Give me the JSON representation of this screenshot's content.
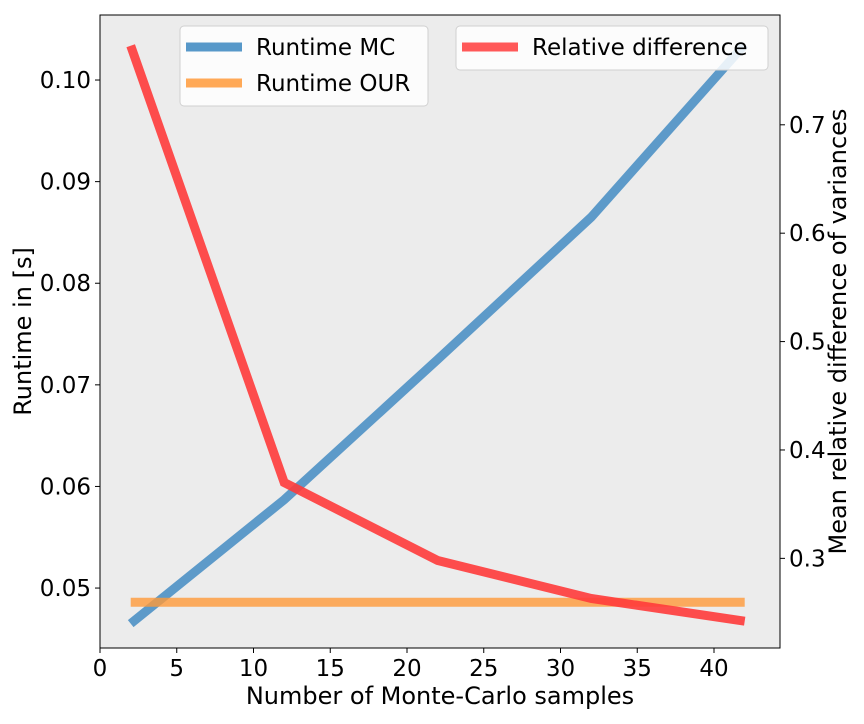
{
  "chart_data": {
    "type": "line",
    "xlabel": "Number of Monte-Carlo samples",
    "ylabel": "Runtime in [s]",
    "y2label": "Mean relative difference of variances",
    "xlim": [
      0,
      44.3
    ],
    "ylim": [
      0.0441,
      0.1064
    ],
    "y2lim": [
      0.2173,
      0.8013
    ],
    "xticks": [
      0,
      5,
      10,
      15,
      20,
      25,
      30,
      35,
      40
    ],
    "yticks": [
      0.05,
      0.06,
      0.07,
      0.08,
      0.09,
      0.1
    ],
    "y2ticks": [
      0.3,
      0.4,
      0.5,
      0.6,
      0.7
    ],
    "background": "#ececec",
    "grid": false,
    "series": [
      {
        "name": "Runtime MC",
        "axis": "left",
        "color": "#3a86c0",
        "x": [
          2,
          12,
          22,
          32,
          42
        ],
        "y": [
          0.0465,
          0.0587,
          0.0725,
          0.0865,
          0.1035
        ]
      },
      {
        "name": "Runtime OUR",
        "axis": "left",
        "color": "#ff9a3a",
        "x": [
          2,
          12,
          22,
          32,
          42
        ],
        "y": [
          0.0486,
          0.0486,
          0.0486,
          0.0486,
          0.0486
        ]
      },
      {
        "name": "Relative difference",
        "axis": "right",
        "color": "#ff3b3b",
        "x": [
          2,
          12,
          22,
          32,
          42
        ],
        "y": [
          0.773,
          0.37,
          0.298,
          0.263,
          0.242
        ]
      }
    ],
    "legends": [
      {
        "placement": "top-center",
        "entries": [
          "Runtime MC",
          "Runtime OUR"
        ]
      },
      {
        "placement": "top-right",
        "entries": [
          "Relative difference"
        ]
      }
    ]
  }
}
